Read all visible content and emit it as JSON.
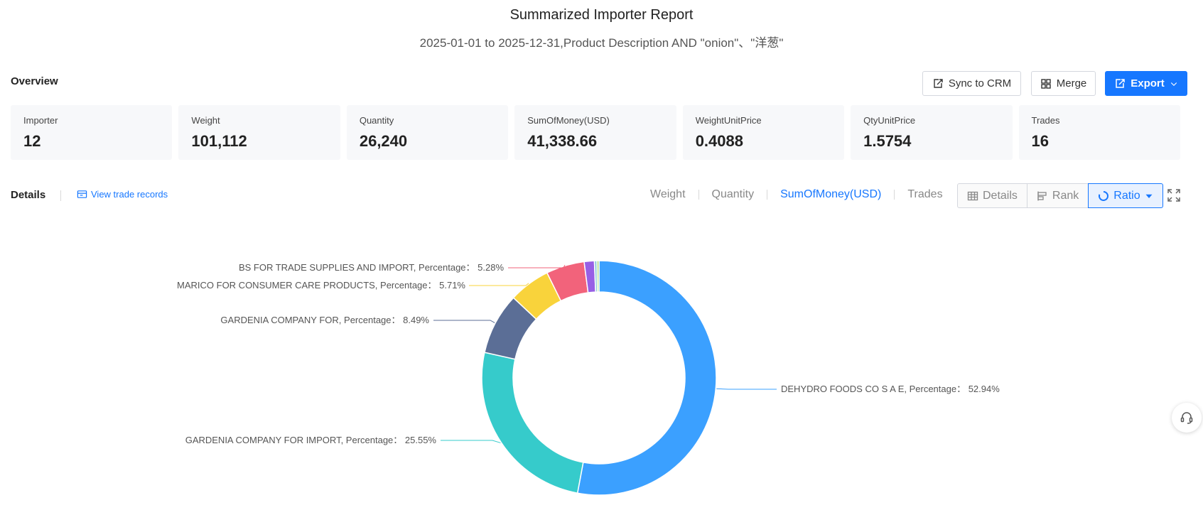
{
  "header": {
    "title": "Summarized Importer Report",
    "subtitle": "2025-01-01 to 2025-12-31,Product Description AND \"onion\"、\"洋葱\""
  },
  "overview": {
    "label": "Overview",
    "buttons": {
      "sync": "Sync to CRM",
      "merge": "Merge",
      "export": "Export"
    },
    "stats": [
      {
        "label": "Importer",
        "value": "12"
      },
      {
        "label": "Weight",
        "value": "101,112"
      },
      {
        "label": "Quantity",
        "value": "26,240"
      },
      {
        "label": "SumOfMoney(USD)",
        "value": "41,338.66"
      },
      {
        "label": "WeightUnitPrice",
        "value": "0.4088"
      },
      {
        "label": "QtyUnitPrice",
        "value": "1.5754"
      },
      {
        "label": "Trades",
        "value": "16"
      }
    ]
  },
  "details": {
    "label": "Details",
    "view_records": "View trade records",
    "metric_tabs": [
      "Weight",
      "Quantity",
      "SumOfMoney(USD)",
      "Trades"
    ],
    "active_metric": "SumOfMoney(USD)",
    "view_buttons": [
      "Details",
      "Rank",
      "Ratio"
    ],
    "active_view": "Ratio"
  },
  "icons": [
    "sync-icon",
    "merge-icon",
    "export-icon",
    "chevron-down-icon",
    "records-icon",
    "table-icon",
    "rank-icon",
    "ratio-icon",
    "caret-down-icon",
    "fullscreen-icon",
    "headset-icon"
  ],
  "colors": {
    "accent": "#1677ff"
  },
  "chart_data": {
    "type": "pie",
    "donut": true,
    "slices": [
      {
        "label": "DEHYDRO FOODS CO S A E,",
        "percent": 52.94,
        "color": "#3ba0ff"
      },
      {
        "label": "GARDENIA COMPANY FOR IMPORT,",
        "percent": 25.55,
        "color": "#36cbcb"
      },
      {
        "label": "GARDENIA COMPANY FOR,",
        "percent": 8.49,
        "color": "#5b6e96"
      },
      {
        "label": "MARICO FOR CONSUMER CARE PRODUCTS,",
        "percent": 5.71,
        "color": "#f9d33b"
      },
      {
        "label": "BS FOR TRADE SUPPLIES AND IMPORT,",
        "percent": 5.28,
        "color": "#f2637b"
      },
      {
        "label": "",
        "percent": 1.4,
        "color": "#975fe5"
      },
      {
        "label": "",
        "percent": 0.35,
        "color": "#8ac7d9"
      },
      {
        "label": "",
        "percent": 0.28,
        "color": "#a4d273"
      }
    ],
    "percentage_prefix": "Percentage："
  }
}
